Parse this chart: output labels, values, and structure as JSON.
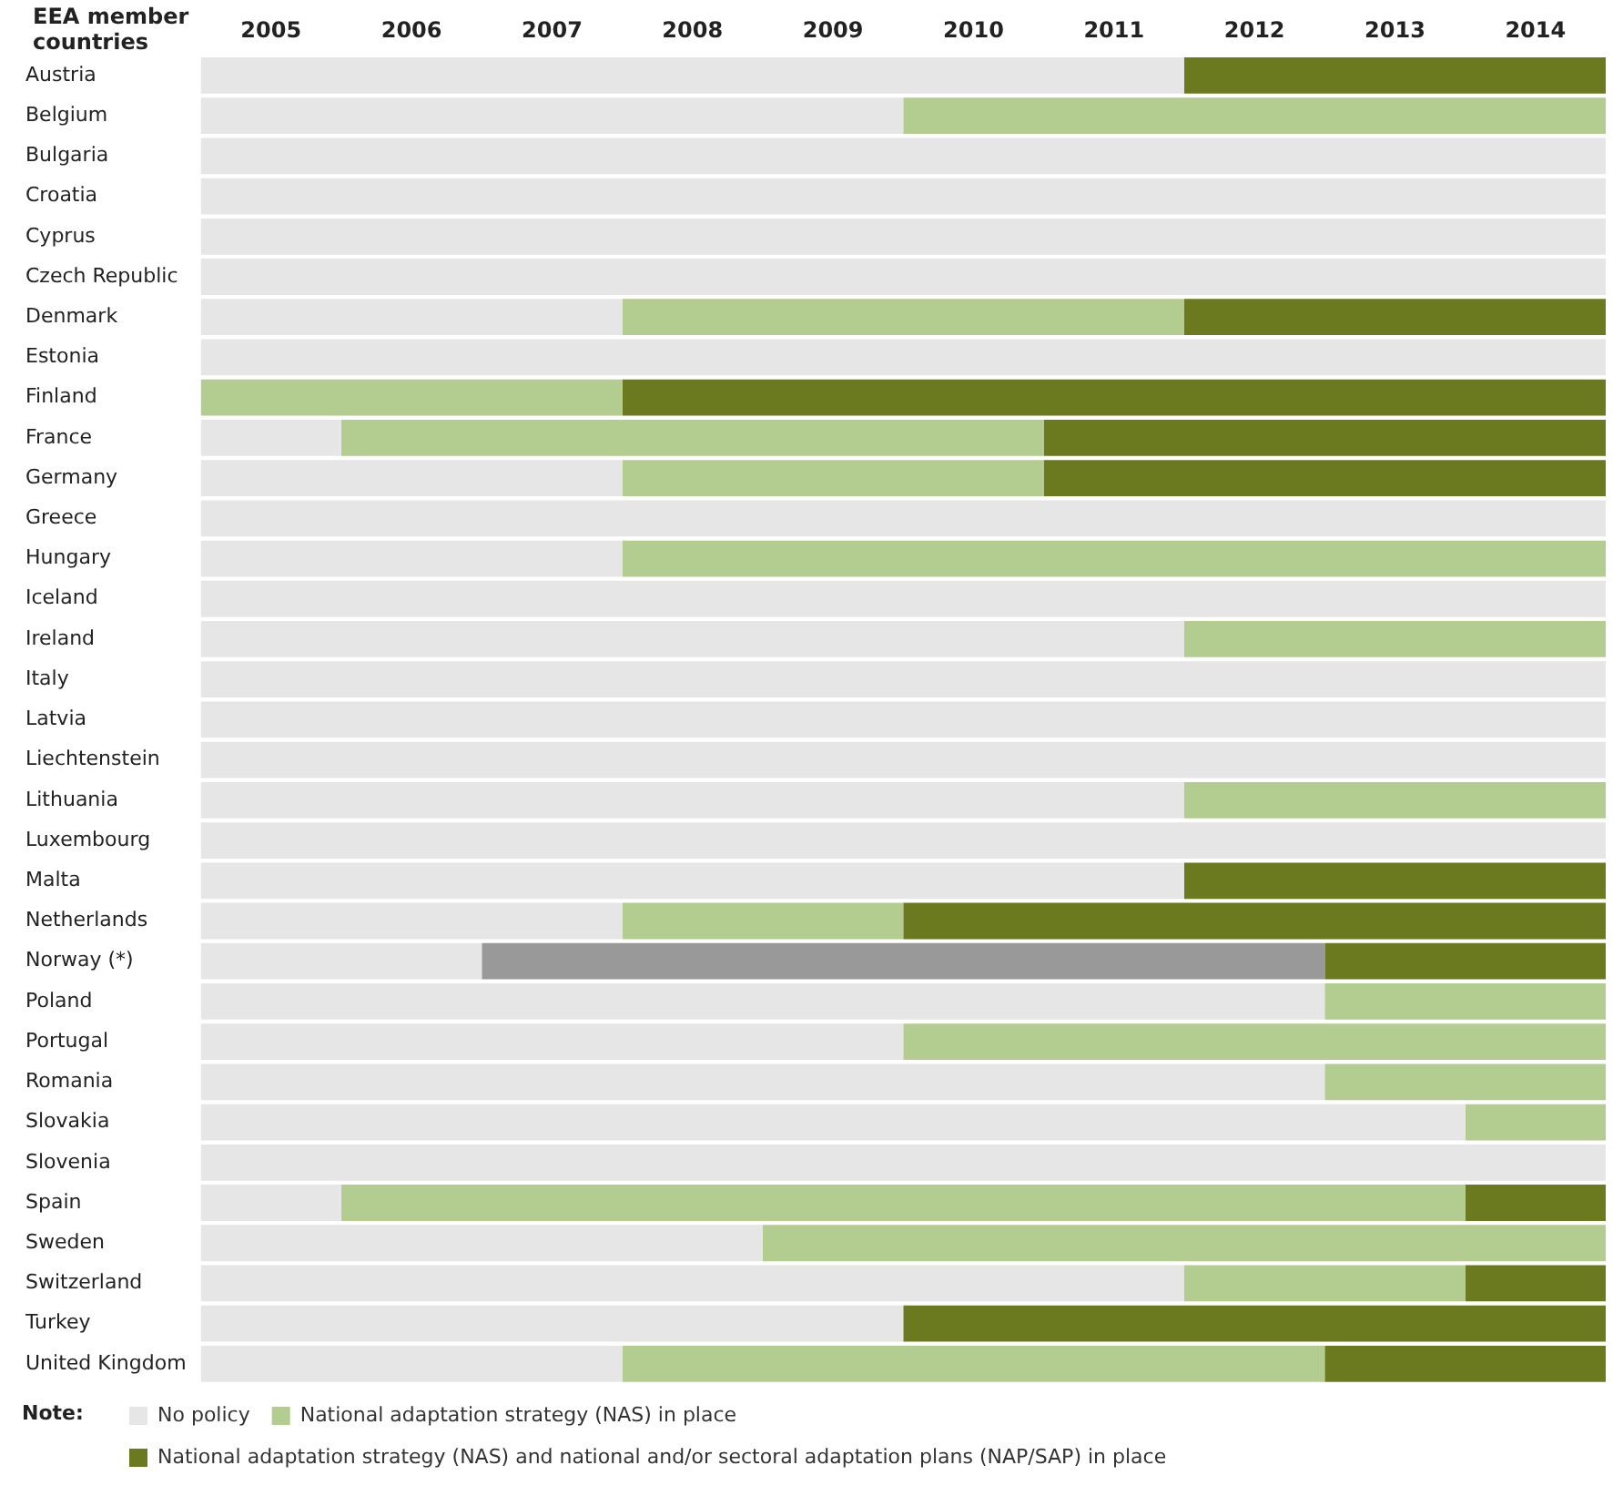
{
  "chart_data": {
    "type": "bar",
    "orientation": "horizontal",
    "ylabel": "EEA member countries",
    "annotations": [
      "Note:"
    ],
    "categories": [
      "Austria",
      "Belgium",
      "Bulgaria",
      "Croatia",
      "Cyprus",
      "Czech Republic",
      "Denmark",
      "Estonia",
      "Finland",
      "France",
      "Germany",
      "Greece",
      "Hungary",
      "Iceland",
      "Ireland",
      "Italy",
      "Latvia",
      "Liechtenstein",
      "Lithuania",
      "Luxembourg",
      "Malta",
      "Netherlands",
      "Norway (*)",
      "Poland",
      "Portugal",
      "Romania",
      "Slovakia",
      "Slovenia",
      "Spain",
      "Sweden",
      "Switzerland",
      "Turkey",
      "United Kingdom"
    ],
    "series": [
      {
        "name": "No policy",
        "color": "#e6e6e6",
        "values": [
          7,
          5,
          10,
          10,
          10,
          10,
          3,
          10,
          null,
          1,
          3,
          10,
          3,
          10,
          7,
          10,
          10,
          10,
          7,
          10,
          7,
          3,
          2,
          8,
          5,
          8,
          9,
          10,
          1,
          4,
          7,
          5,
          3
        ],
        "base": [
          2004.5,
          2004.5,
          2004.5,
          2004.5,
          2004.5,
          2004.5,
          2004.5,
          2004.5,
          null,
          2004.5,
          2004.5,
          2004.5,
          2004.5,
          2004.5,
          2004.5,
          2004.5,
          2004.5,
          2004.5,
          2004.5,
          2004.5,
          2004.5,
          2004.5,
          2004.5,
          2004.5,
          2004.5,
          2004.5,
          2004.5,
          2004.5,
          2004.5,
          2004.5,
          2004.5,
          2004.5,
          2004.5
        ]
      },
      {
        "color": "#999999",
        "values": [
          null,
          null,
          null,
          null,
          null,
          null,
          null,
          null,
          null,
          null,
          null,
          null,
          null,
          null,
          null,
          null,
          null,
          null,
          null,
          null,
          null,
          null,
          6,
          null,
          null,
          null,
          null,
          null,
          null,
          null,
          null,
          null,
          null
        ],
        "base": [
          null,
          null,
          null,
          null,
          null,
          null,
          null,
          null,
          null,
          null,
          null,
          null,
          null,
          null,
          null,
          null,
          null,
          null,
          null,
          null,
          null,
          null,
          2006.5,
          null,
          null,
          null,
          null,
          null,
          null,
          null,
          null,
          null,
          null
        ]
      },
      {
        "name": "National adaptation strategy (NAS) in place",
        "color": "#b3cc8f",
        "values": [
          null,
          5,
          null,
          null,
          null,
          null,
          4,
          null,
          3,
          5,
          3,
          null,
          7,
          null,
          3,
          null,
          null,
          null,
          3,
          null,
          null,
          2,
          null,
          2,
          5,
          2,
          1,
          null,
          8,
          6,
          2,
          null,
          5
        ],
        "base": [
          null,
          2009.5,
          null,
          null,
          null,
          null,
          2007.5,
          null,
          2004.5,
          2005.5,
          2007.5,
          null,
          2007.5,
          null,
          2011.5,
          null,
          null,
          null,
          2011.5,
          null,
          null,
          2007.5,
          null,
          2012.5,
          2009.5,
          2012.5,
          2013.5,
          null,
          2005.5,
          2008.5,
          2011.5,
          null,
          2007.5
        ]
      },
      {
        "name": "National adaptation strategy (NAS) and national and/or sectoral adaptation plans (NAP/SAP) in place",
        "color": "#6b7a1f",
        "values": [
          3,
          null,
          null,
          null,
          null,
          null,
          3,
          null,
          7,
          4,
          4,
          null,
          null,
          null,
          null,
          null,
          null,
          null,
          null,
          null,
          3,
          5,
          2,
          null,
          null,
          null,
          null,
          null,
          1,
          null,
          1,
          5,
          2
        ],
        "base": [
          2011.5,
          null,
          null,
          null,
          null,
          null,
          2011.5,
          null,
          2007.5,
          2010.5,
          2010.5,
          null,
          null,
          null,
          null,
          null,
          null,
          null,
          null,
          null,
          2011.5,
          2009.5,
          2012.5,
          null,
          null,
          null,
          null,
          null,
          2013.5,
          null,
          2013.5,
          2009.5,
          2012.5
        ]
      }
    ],
    "xlim": [
      2004.5,
      2014.5
    ],
    "xticks": [
      2005,
      2006,
      2007,
      2008,
      2009,
      2010,
      2011,
      2012,
      2013,
      2014
    ],
    "grid": false,
    "legend": "bottom left"
  }
}
